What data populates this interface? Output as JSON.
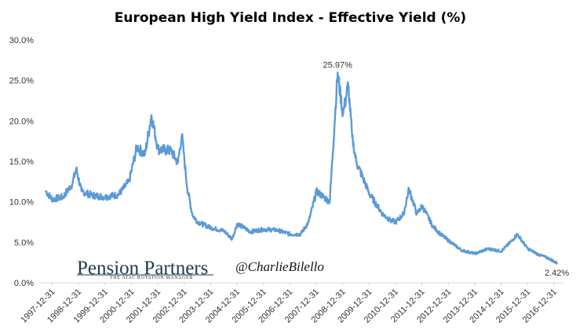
{
  "chart_data": {
    "type": "line",
    "title": "European  High Yield Index - Effective Yield (%)",
    "xlabel": "",
    "ylabel": "",
    "ylim": [
      0,
      30
    ],
    "y_ticks": [
      "0.0%",
      "5.0%",
      "10.0%",
      "15.0%",
      "20.0%",
      "25.0%",
      "30.0%"
    ],
    "x_ticks": [
      "1997-12-31",
      "1998-12-31",
      "1999-12-31",
      "2000-12-31",
      "2001-12-31",
      "2002-12-31",
      "2003-12-31",
      "2004-12-31",
      "2005-12-31",
      "2006-12-31",
      "2007-12-31",
      "2008-12-31",
      "2009-12-31",
      "2010-12-31",
      "2011-12-31",
      "2012-12-31",
      "2013-12-31",
      "2014-12-31",
      "2015-12-31",
      "2016-12-31"
    ],
    "grid": false,
    "legend": "none",
    "series": [
      {
        "name": "European High Yield Index - Effective Yield",
        "color": "#5b9bd5",
        "x": [
          1997.75,
          1998.0,
          1998.4,
          1998.75,
          1998.9,
          1999.1,
          1999.5,
          2000.0,
          2000.5,
          2000.9,
          2001.2,
          2001.5,
          2001.75,
          2002.0,
          2002.5,
          2002.75,
          2002.9,
          2003.1,
          2003.3,
          2003.5,
          2004.0,
          2004.5,
          2004.8,
          2005.0,
          2005.5,
          2006.0,
          2006.5,
          2007.0,
          2007.4,
          2007.7,
          2008.0,
          2008.5,
          2008.8,
          2009.0,
          2009.2,
          2009.35,
          2009.5,
          2010.0,
          2010.3,
          2010.5,
          2010.8,
          2011.0,
          2011.3,
          2011.5,
          2011.8,
          2012.0,
          2012.4,
          2012.7,
          2013.0,
          2013.5,
          2014.0,
          2014.5,
          2015.0,
          2015.4,
          2015.6,
          2016.0,
          2016.4,
          2016.8,
          2017.1
        ],
        "values": [
          11.3,
          10.3,
          10.6,
          12.2,
          14.1,
          11.3,
          10.8,
          10.6,
          10.9,
          12.5,
          16.8,
          15.8,
          20.7,
          16.5,
          16.3,
          14.8,
          18.3,
          11.8,
          8.4,
          7.5,
          6.8,
          6.4,
          5.4,
          7.3,
          6.3,
          6.6,
          6.5,
          6.0,
          6.0,
          7.5,
          11.3,
          10.0,
          25.97,
          20.8,
          24.5,
          18.0,
          15.0,
          11.0,
          9.5,
          8.5,
          7.7,
          7.5,
          8.5,
          11.6,
          8.5,
          9.5,
          7.0,
          6.0,
          5.2,
          4.0,
          3.6,
          4.2,
          3.9,
          5.2,
          6.0,
          4.2,
          3.5,
          3.0,
          2.42
        ]
      }
    ],
    "annotations": [
      {
        "label": "25.97%",
        "x": 2008.8,
        "y": 25.97
      },
      {
        "label": "2.42%",
        "x": 2017.1,
        "y": 2.42
      }
    ]
  },
  "branding": {
    "logo_text": "Pension Partners",
    "logo_tagline": "THE ATAC ROTATION MANAGER",
    "twitter_handle": "@CharlieBilello"
  }
}
